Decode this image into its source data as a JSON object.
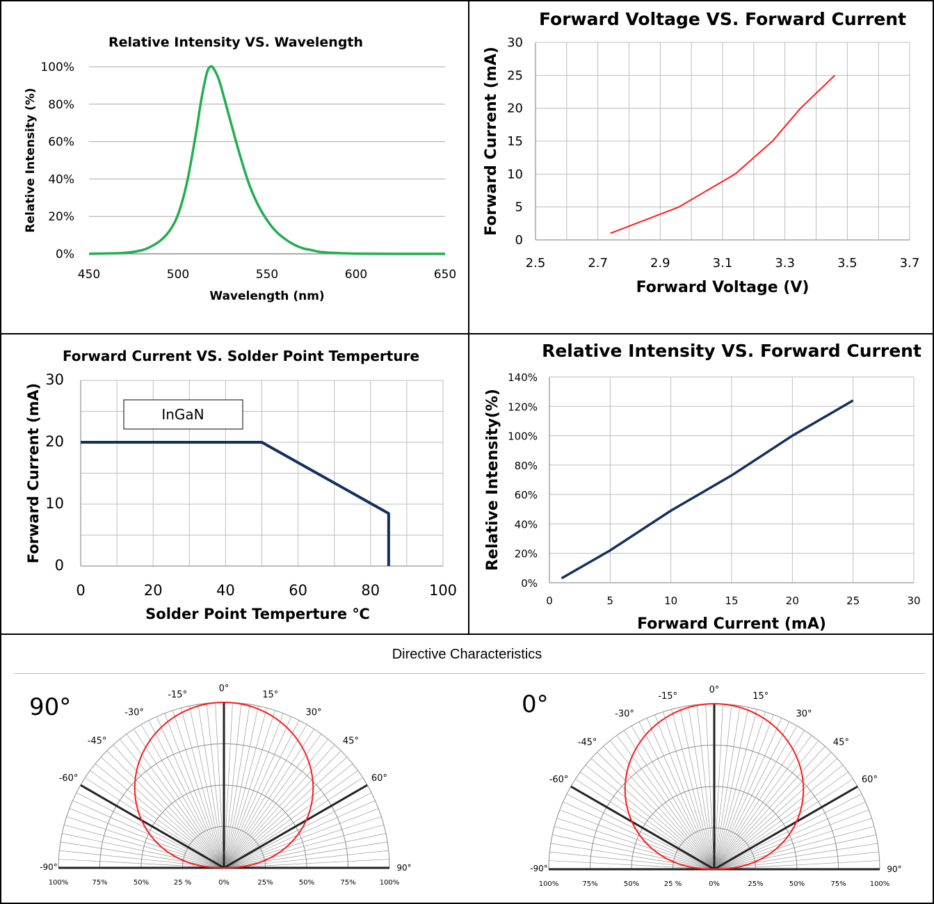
{
  "directive_title": "Directive Characteristics",
  "colors": {
    "green": "#1fae50",
    "red": "#ff1a1a",
    "navy": "#13305c",
    "grid": "#bdbdbd"
  },
  "chart_data": [
    {
      "type": "line",
      "title": "Relative Intensity  VS. Wavelength",
      "xlabel": "Wavelength (nm)",
      "ylabel": "Relative Intensity (%)",
      "xlim": [
        450,
        650
      ],
      "ylim": [
        0,
        100
      ],
      "xticks": [
        "450",
        "500",
        "550",
        "600",
        "650"
      ],
      "yticks": [
        "0%",
        "20%",
        "40%",
        "60%",
        "80%",
        "100%"
      ],
      "grid": "horizontal",
      "series": [
        {
          "x": [
            450,
            470,
            480,
            485,
            490,
            495,
            500,
            505,
            510,
            513,
            516,
            518,
            520,
            523,
            526,
            530,
            535,
            540,
            545,
            550,
            555,
            560,
            565,
            570,
            575,
            580,
            590,
            600,
            620,
            650
          ],
          "values": [
            0,
            0.5,
            2,
            4,
            7,
            12,
            21,
            38,
            64,
            82,
            96,
            100,
            99,
            93,
            83,
            69,
            52,
            37,
            26,
            18,
            12,
            8,
            5,
            3,
            2,
            1,
            0.4,
            0.1,
            0,
            0
          ]
        }
      ]
    },
    {
      "type": "line",
      "title": "Forward Voltage VS. Forward  Current",
      "xlabel": "Forward Voltage (V)",
      "ylabel": "Forward Current (mA)",
      "xlim": [
        2.5,
        3.7
      ],
      "ylim": [
        0,
        30
      ],
      "xticks": [
        "2.5",
        "2.7",
        "2.9",
        "3.1",
        "3.3",
        "3.5",
        "3.7"
      ],
      "yticks": [
        "0",
        "5",
        "10",
        "15",
        "20",
        "25",
        "30"
      ],
      "grid": "both",
      "series": [
        {
          "x": [
            2.74,
            2.96,
            3.14,
            3.26,
            3.35,
            3.46
          ],
          "values": [
            1,
            5,
            10,
            15,
            20,
            25
          ]
        }
      ]
    },
    {
      "type": "line",
      "title": "Forward Current  VS. Solder Point Temperture",
      "xlabel": "Solder Point Temperture ℃",
      "ylabel": "Forward Current (mA)",
      "annotation": "InGaN",
      "xlim": [
        0,
        100
      ],
      "ylim": [
        0,
        30
      ],
      "xticks": [
        "0",
        "20",
        "40",
        "60",
        "80",
        "100"
      ],
      "yticks": [
        "0",
        "10",
        "20",
        "30"
      ],
      "grid": "both",
      "series": [
        {
          "x": [
            0,
            50,
            85,
            85
          ],
          "values": [
            20,
            20,
            8.5,
            0
          ]
        }
      ]
    },
    {
      "type": "line",
      "title": "Relative Intensity VS. Forward  Current",
      "xlabel": "Forward Current (mA)",
      "ylabel": "Relative Intensity(%)",
      "xlim": [
        0,
        30
      ],
      "ylim": [
        0,
        140
      ],
      "xticks": [
        "0",
        "5",
        "10",
        "15",
        "20",
        "25",
        "30"
      ],
      "yticks": [
        "0%",
        "20%",
        "40%",
        "60%",
        "80%",
        "100%",
        "120%",
        "140%"
      ],
      "grid": "both",
      "series": [
        {
          "x": [
            1,
            5,
            10,
            15,
            20,
            25
          ],
          "values": [
            3,
            22,
            49,
            73,
            100,
            124
          ]
        }
      ]
    },
    {
      "type": "polar",
      "label": "90°",
      "angle_labels": [
        "0°",
        "15°",
        "-15°",
        "30°",
        "-30°",
        "45°",
        "-45°",
        "60°",
        "-60°",
        "90°",
        "-90°"
      ],
      "radial_labels": [
        "100%",
        "75%",
        "50%",
        "25 %",
        "0%",
        "25%",
        "50%",
        "75%",
        "100%"
      ],
      "series": [
        {
          "pattern": "lambertian-wide"
        }
      ]
    },
    {
      "type": "polar",
      "label": "0°",
      "angle_labels": [
        "0°",
        "15°",
        "-15°",
        "30°",
        "-30°",
        "45°",
        "-45°",
        "60°",
        "-60°",
        "90°",
        "-90°"
      ],
      "radial_labels": [
        "100%",
        "75%",
        "50%",
        "25 %",
        "0%",
        "25%",
        "50%",
        "75%",
        "100%"
      ],
      "series": [
        {
          "pattern": "lambertian-wide"
        }
      ]
    }
  ]
}
